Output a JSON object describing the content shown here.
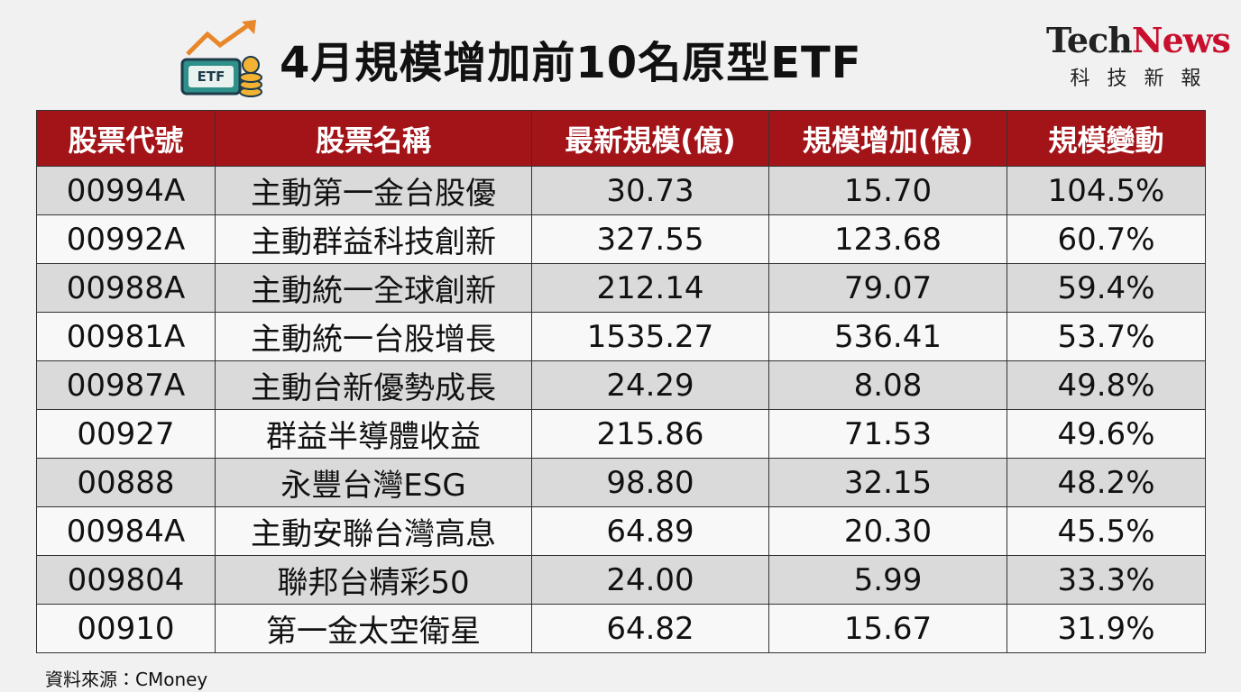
{
  "header": {
    "title": "4月規模增加前10名原型ETF",
    "icon_label": "ETF",
    "logo": {
      "parts": [
        "Tech",
        "News"
      ],
      "subtitle": "科 技 新 報"
    }
  },
  "table": {
    "columns": [
      "股票代號",
      "股票名稱",
      "最新規模(億)",
      "規模增加(億)",
      "規模變動"
    ],
    "rows": [
      [
        "00994A",
        "主動第一金台股優",
        "30.73",
        "15.70",
        "104.5%"
      ],
      [
        "00992A",
        "主動群益科技創新",
        "327.55",
        "123.68",
        "60.7%"
      ],
      [
        "00988A",
        "主動統一全球創新",
        "212.14",
        "79.07",
        "59.4%"
      ],
      [
        "00981A",
        "主動統一台股增長",
        "1535.27",
        "536.41",
        "53.7%"
      ],
      [
        "00987A",
        "主動台新優勢成長",
        "24.29",
        "8.08",
        "49.8%"
      ],
      [
        "00927",
        "群益半導體收益",
        "215.86",
        "71.53",
        "49.6%"
      ],
      [
        "00888",
        "永豐台灣ESG",
        "98.80",
        "32.15",
        "48.2%"
      ],
      [
        "00984A",
        "主動安聯台灣高息",
        "64.89",
        "20.30",
        "45.5%"
      ],
      [
        "009804",
        "聯邦台精彩50",
        "24.00",
        "5.99",
        "33.3%"
      ],
      [
        "00910",
        "第一金太空衛星",
        "64.82",
        "15.67",
        "31.9%"
      ]
    ]
  },
  "footer": {
    "source": "資料來源：CMoney"
  }
}
